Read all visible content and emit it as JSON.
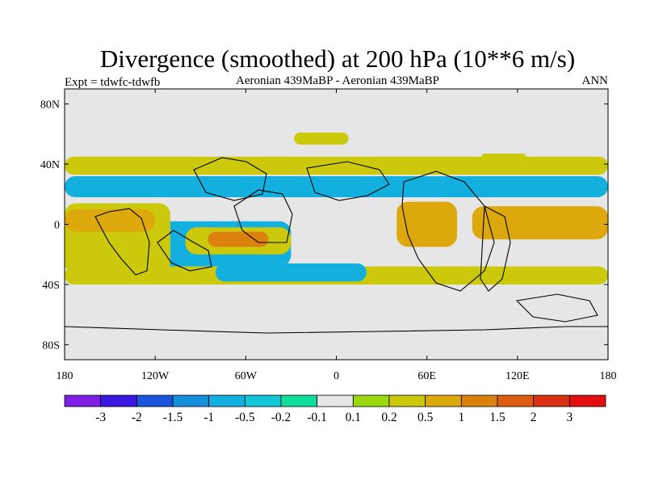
{
  "chart_data": {
    "type": "filled-contour map",
    "title": "Divergence (smoothed) at 200 hPa (10**6 m/s)",
    "subtitle_left": "Expt = tdwfc-tdwfb",
    "subtitle_center": "Aeronian 439MaBP - Aeronian 439MaBP",
    "subtitle_right": "ANN",
    "x_range": [
      -180,
      180
    ],
    "y_range": [
      -90,
      90
    ],
    "x_ticks": [
      {
        "value": -180,
        "label": "180"
      },
      {
        "value": -120,
        "label": "120W"
      },
      {
        "value": -60,
        "label": "60W"
      },
      {
        "value": 0,
        "label": "0"
      },
      {
        "value": 60,
        "label": "60E"
      },
      {
        "value": 120,
        "label": "120E"
      },
      {
        "value": 180,
        "label": "180"
      }
    ],
    "y_ticks": [
      {
        "value": 80,
        "label": "80N"
      },
      {
        "value": 40,
        "label": "40N"
      },
      {
        "value": 0,
        "label": "0"
      },
      {
        "value": -40,
        "label": "40S"
      },
      {
        "value": -80,
        "label": "80S"
      }
    ],
    "contour_levels": [
      "-3",
      "-2",
      "-1.5",
      "-1",
      "-0.5",
      "-0.2",
      "-0.1",
      "0.1",
      "0.2",
      "0.5",
      "1",
      "1.5",
      "2",
      "3"
    ],
    "colors": [
      "#7f1fe4",
      "#3a18e0",
      "#1c55dd",
      "#1690dd",
      "#13b0df",
      "#10c8d8",
      "#10dc9c",
      "#e6e6e6",
      "#9cd80e",
      "#ccc80c",
      "#dca80c",
      "#dc800e",
      "#dc5c10",
      "#dc3012",
      "#e01010"
    ],
    "regions": [
      {
        "level": "+0.2",
        "lon": [
          -28,
          8
        ],
        "lat": [
          53,
          61
        ]
      },
      {
        "level": "+0.2",
        "lon": [
          96,
          126
        ],
        "lat": [
          42,
          47
        ]
      },
      {
        "level": "+0.2",
        "lon": [
          -180,
          180
        ],
        "lat": [
          33,
          45
        ]
      },
      {
        "level": "-0.5",
        "lon": [
          -180,
          180
        ],
        "lat": [
          18,
          32
        ]
      },
      {
        "level": "-0.5",
        "lon": [
          -120,
          -30
        ],
        "lat": [
          -28,
          2
        ]
      },
      {
        "level": "+0.2",
        "lon": [
          -180,
          -110
        ],
        "lat": [
          -33,
          14
        ]
      },
      {
        "level": "+0.5",
        "lon": [
          -180,
          -120
        ],
        "lat": [
          -5,
          10
        ]
      },
      {
        "level": "+0.2",
        "lon": [
          -100,
          -30
        ],
        "lat": [
          -20,
          -2
        ]
      },
      {
        "level": "+1",
        "lon": [
          -85,
          -45
        ],
        "lat": [
          -15,
          -5
        ]
      },
      {
        "level": "+0.5",
        "lon": [
          40,
          80
        ],
        "lat": [
          -15,
          15
        ]
      },
      {
        "level": "+0.5",
        "lon": [
          90,
          180
        ],
        "lat": [
          -10,
          12
        ]
      },
      {
        "level": "+0.2",
        "lon": [
          -180,
          180
        ],
        "lat": [
          -40,
          -28
        ]
      },
      {
        "level": "-0.5",
        "lon": [
          -80,
          20
        ],
        "lat": [
          -38,
          -26
        ]
      }
    ]
  }
}
